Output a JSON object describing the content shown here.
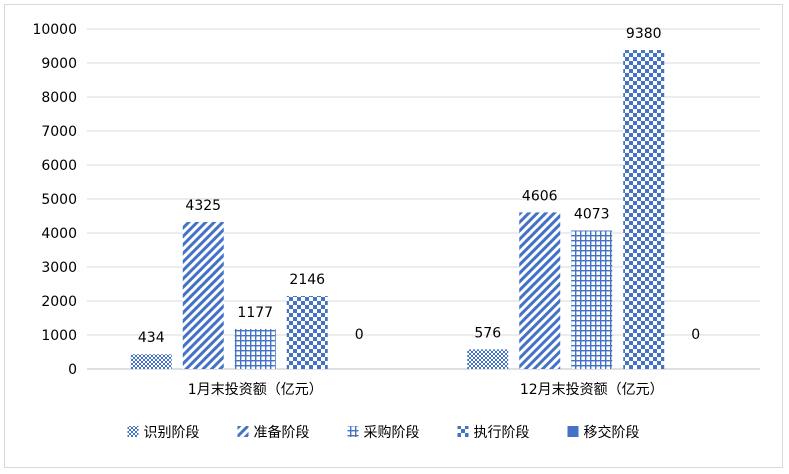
{
  "chart_data": {
    "type": "bar",
    "categories": [
      "1月末投资额（亿元）",
      "12月末投资额（亿元）"
    ],
    "series": [
      {
        "name": "识别阶段",
        "values": [
          434,
          576
        ],
        "pattern": "dots"
      },
      {
        "name": "准备阶段",
        "values": [
          4325,
          4606
        ],
        "pattern": "diagonal"
      },
      {
        "name": "采购阶段",
        "values": [
          1177,
          4073
        ],
        "pattern": "grid"
      },
      {
        "name": "执行阶段",
        "values": [
          2146,
          9380
        ],
        "pattern": "checker"
      },
      {
        "name": "移交阶段",
        "values": [
          0,
          0
        ],
        "pattern": "solid"
      }
    ],
    "ylim": [
      0,
      10000
    ],
    "yticks": [
      "0",
      "1000",
      "2000",
      "3000",
      "4000",
      "5000",
      "6000",
      "7000",
      "8000",
      "9000",
      "10000"
    ],
    "data_labels": [
      [
        "434",
        "4325",
        "1177",
        "2146",
        "0"
      ],
      [
        "576",
        "4606",
        "4073",
        "9380",
        "0"
      ]
    ],
    "grid": true,
    "legend_position": "bottom",
    "colors": {
      "series": "#4472c4",
      "grid": "#d9d9d9",
      "axis": "#bfbfbf"
    }
  }
}
